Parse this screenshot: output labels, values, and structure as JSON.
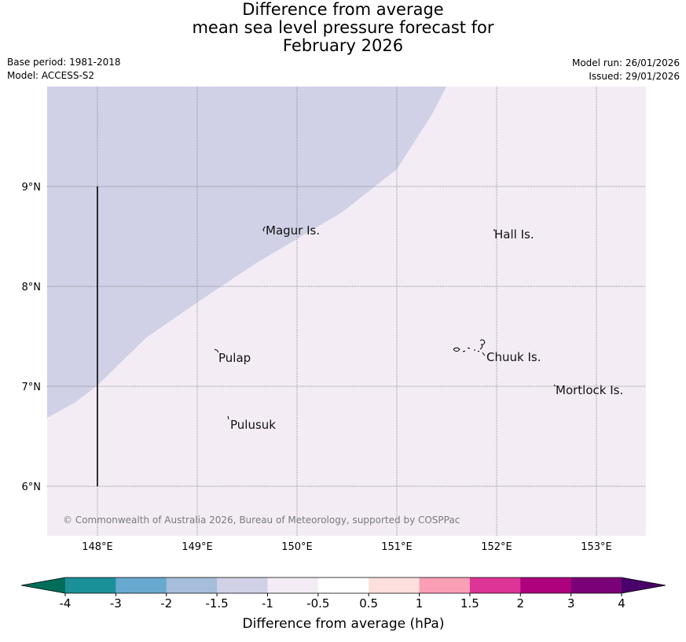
{
  "title": {
    "line1": "Difference from average",
    "line2": "mean sea level pressure forecast for",
    "line3": "February 2026"
  },
  "meta": {
    "base_period": "Base period: 1981-2018",
    "model": "Model: ACCESS-S2",
    "model_run": "Model run: 26/01/2026",
    "issued": "Issued: 29/01/2026"
  },
  "map": {
    "lat_ticks": [
      "9°N",
      "8°N",
      "7°N",
      "6°N"
    ],
    "lon_ticks": [
      "148°E",
      "149°E",
      "150°E",
      "151°E",
      "152°E",
      "153°E"
    ],
    "places": [
      "Magur Is.",
      "Hall Is.",
      "Pulap",
      "Chuuk Is.",
      "Mortlock Is.",
      "Pulusuk"
    ],
    "copyright": "© Commonwealth of Australia 2026, Bureau of Meteorology, supported by COSPPac",
    "colors": {
      "region_minus1_5_to_minus1": "#d0d1e6",
      "region_minus1_to_minus0_5": "#f3ecf5",
      "grid": "#666666"
    }
  },
  "colorbar": {
    "label": "Difference from average (hPa)",
    "ticks": [
      "-4",
      "-3",
      "-2",
      "-1.5",
      "-1",
      "-0.5",
      "0.5",
      "1",
      "1.5",
      "2",
      "3",
      "4"
    ],
    "colors": [
      "#006d5b",
      "#1c9099",
      "#67a9cf",
      "#a6bddb",
      "#d0d1e6",
      "#f3ecf5",
      "#ffffff",
      "#fde0dd",
      "#fa9fb5",
      "#dd3497",
      "#ae017e",
      "#7a0177",
      "#49006a"
    ]
  }
}
